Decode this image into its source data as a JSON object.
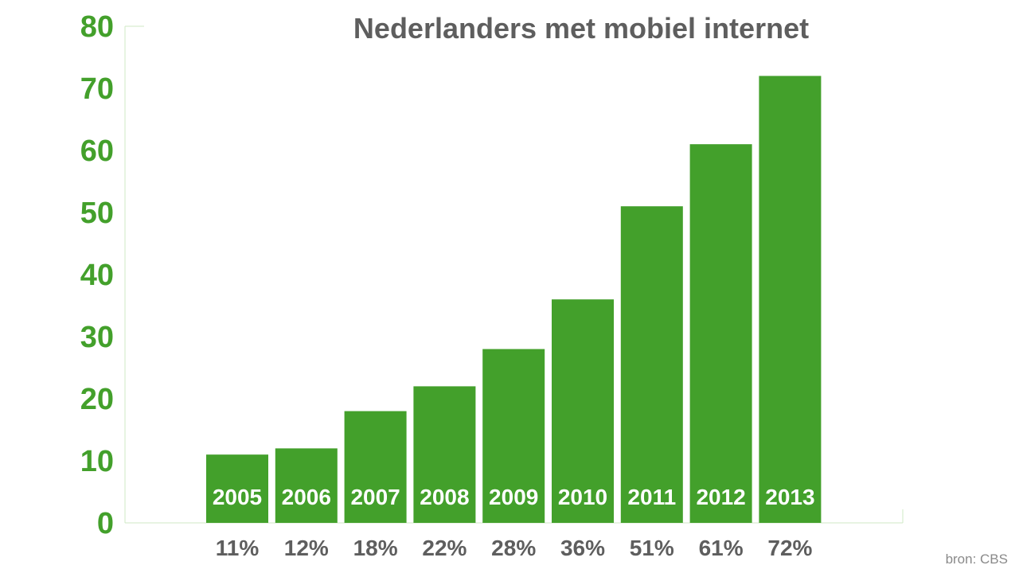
{
  "chart_data": {
    "type": "bar",
    "title": "Nederlanders met mobiel internet",
    "categories": [
      "2005",
      "2006",
      "2007",
      "2008",
      "2009",
      "2010",
      "2011",
      "2012",
      "2013"
    ],
    "values": [
      11,
      12,
      18,
      22,
      28,
      36,
      51,
      61,
      72
    ],
    "value_labels": [
      "11%",
      "12%",
      "18%",
      "22%",
      "28%",
      "36%",
      "51%",
      "61%",
      "72%"
    ],
    "yticks": [
      "0",
      "10",
      "20",
      "30",
      "40",
      "50",
      "60",
      "70",
      "80"
    ],
    "ylim": [
      0,
      80
    ],
    "xlabel": "",
    "ylabel": "",
    "grid": false,
    "legend": "none",
    "source": "bron: CBS",
    "colors": {
      "bar": "#43a02b",
      "axis": "#cfe8c6",
      "ytick": "#43a02b",
      "title": "#5e5e5e",
      "value_label": "#5e5e5e",
      "year_label": "#ffffff",
      "source": "#8a8a8a"
    }
  }
}
